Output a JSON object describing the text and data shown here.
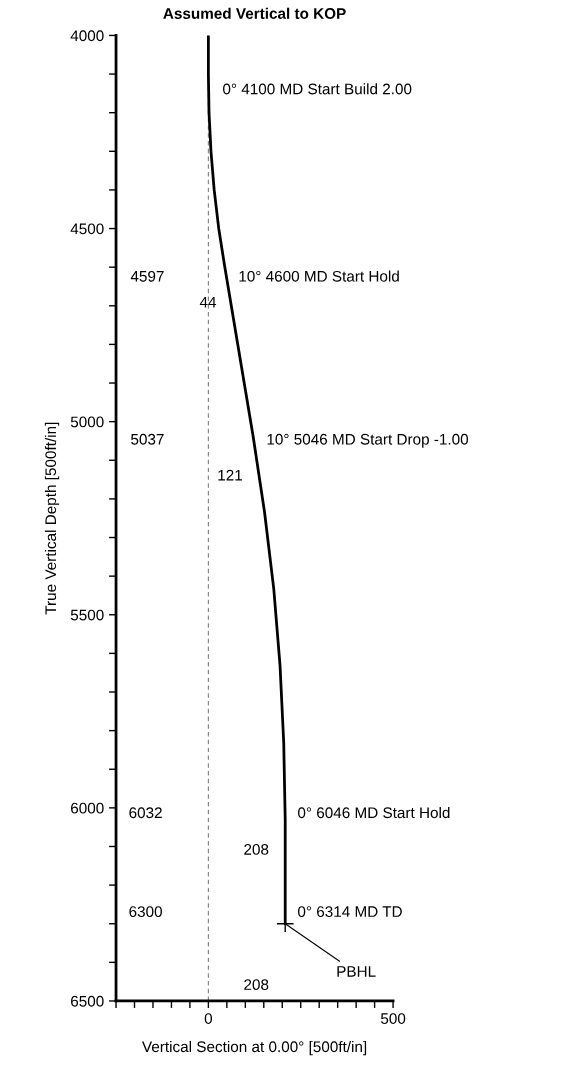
{
  "chart_data": {
    "type": "line",
    "title": "Assumed Vertical to KOP",
    "xlabel": "Vertical Section at 0.00° [500ft/in]",
    "ylabel": "True Vertical Depth [500ft/in]",
    "series": [
      {
        "color": "#000000",
        "x": [
          0,
          0,
          1.7,
          7,
          15.7,
          27.9,
          44,
          121,
          152,
          177,
          194,
          204,
          208,
          208
        ],
        "values": [
          4000,
          4100,
          4200,
          4300,
          4400,
          4499,
          4597,
          5037,
          5234,
          5433,
          5632,
          5832,
          6032,
          6300
        ]
      }
    ],
    "xlim": [
      -250,
      500
    ],
    "ylim": [
      6500,
      4000
    ],
    "xticks": [
      {
        "value": -250,
        "label": null
      },
      {
        "value": -200,
        "label": null
      },
      {
        "value": -150,
        "label": null
      },
      {
        "value": -100,
        "label": null
      },
      {
        "value": -50,
        "label": null
      },
      0,
      {
        "value": 50,
        "label": null
      },
      {
        "value": 100,
        "label": null
      },
      {
        "value": 150,
        "label": null
      },
      {
        "value": 200,
        "label": null
      },
      {
        "value": 250,
        "label": null
      },
      {
        "value": 300,
        "label": null
      },
      {
        "value": 350,
        "label": null
      },
      {
        "value": 400,
        "label": null
      },
      {
        "value": 450,
        "label": null
      },
      500
    ],
    "yticks": [
      4000,
      {
        "value": 4100,
        "label": null
      },
      {
        "value": 4200,
        "label": null
      },
      {
        "value": 4300,
        "label": null
      },
      {
        "value": 4400,
        "label": null
      },
      4500,
      {
        "value": 4600,
        "label": null
      },
      {
        "value": 4700,
        "label": null
      },
      {
        "value": 4800,
        "label": null
      },
      {
        "value": 4900,
        "label": null
      },
      5000,
      {
        "value": 5100,
        "label": null
      },
      {
        "value": 5200,
        "label": null
      },
      {
        "value": 5300,
        "label": null
      },
      {
        "value": 5400,
        "label": null
      },
      5500,
      {
        "value": 5600,
        "label": null
      },
      {
        "value": 5700,
        "label": null
      },
      {
        "value": 5800,
        "label": null
      },
      {
        "value": 5900,
        "label": null
      },
      6000,
      {
        "value": 6100,
        "label": null
      },
      {
        "value": 6200,
        "label": null
      },
      {
        "value": 6300,
        "label": null
      },
      {
        "value": 6400,
        "label": null
      },
      6500
    ],
    "ref_lines": [
      {
        "axis": "x",
        "value": 0,
        "color": "#808080",
        "line_style": "dashed"
      }
    ],
    "annotations": [
      {
        "text": "0° 4100 MD Start Build 2.00",
        "x": 0,
        "y": 4100
      },
      "4597",
      {
        "text": "10° 4600 MD Start Hold",
        "x": 44,
        "y": 4597
      },
      "44",
      "5037",
      {
        "text": "10° 5046 MD Start Drop -1.00",
        "x": 121,
        "y": 5037
      },
      "121",
      "6032",
      {
        "text": "0° 6046 MD Start Hold",
        "x": 208,
        "y": 6032
      },
      "208",
      "6300",
      {
        "text": "0° 6314 MD TD",
        "x": 208,
        "y": 6300
      },
      {
        "text": "PBHL",
        "x": 208,
        "y": 6300
      },
      "208"
    ],
    "grid": false,
    "legend": false,
    "line_style": "solid",
    "marker": "none"
  }
}
